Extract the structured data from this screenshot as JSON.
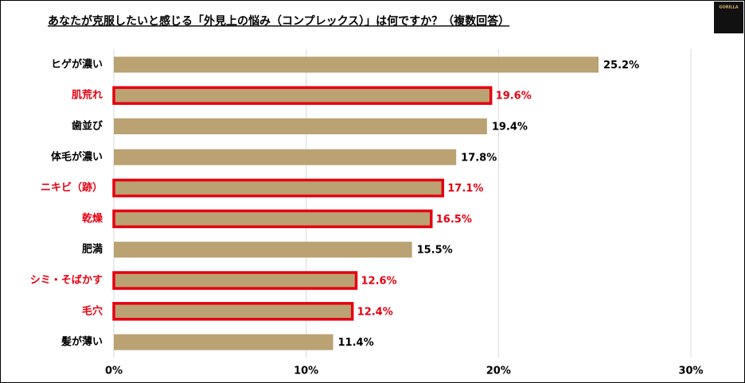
{
  "logo": "GORILLA",
  "chart_data": {
    "type": "bar",
    "orientation": "horizontal",
    "title": "あなたが克服したいと感じる「外見上の悩み（コンプレックス）」は何ですか？（複数回答）",
    "categories": [
      "ヒゲが濃い",
      "肌荒れ",
      "歯並び",
      "体毛が濃い",
      "ニキビ（跡）",
      "乾燥",
      "肥満",
      "シミ・そばかす",
      "毛穴",
      "髪が薄い"
    ],
    "values": [
      25.2,
      19.6,
      19.4,
      17.8,
      17.1,
      16.5,
      15.5,
      12.6,
      12.4,
      11.4
    ],
    "value_labels": [
      "25.2%",
      "19.6%",
      "19.4%",
      "17.8%",
      "17.1%",
      "16.5%",
      "15.5%",
      "12.6%",
      "12.4%",
      "11.4%"
    ],
    "color": "#bba273",
    "label_colors": [
      "#000000",
      "#e60012",
      "#000000",
      "#000000",
      "#e60012",
      "#e60012",
      "#000000",
      "#e60012",
      "#e60012",
      "#000000"
    ],
    "border_colors": [
      null,
      "#e60012",
      null,
      null,
      "#e60012",
      "#e60012",
      null,
      "#e60012",
      "#e60012",
      null
    ],
    "xlim": [
      0,
      30
    ],
    "xticks": [
      {
        "value": 0,
        "label": "0%"
      },
      {
        "value": 10,
        "label": "10%"
      },
      {
        "value": 20,
        "label": "20%"
      },
      {
        "value": 30,
        "label": "30%"
      }
    ],
    "grid": true
  }
}
